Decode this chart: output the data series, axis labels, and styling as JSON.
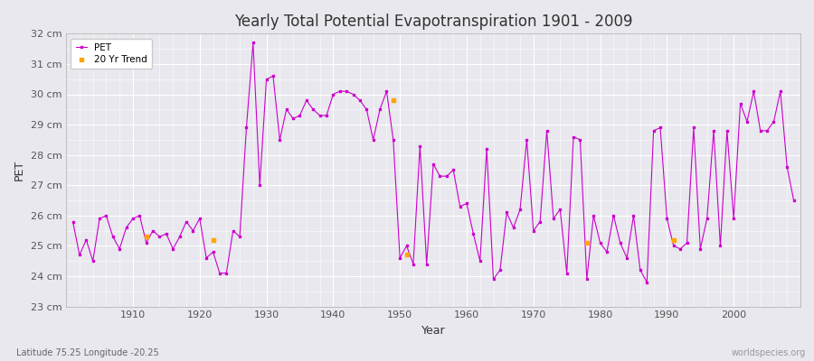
{
  "title": "Yearly Total Potential Evapotranspiration 1901 - 2009",
  "xlabel": "Year",
  "ylabel": "PET",
  "subtitle": "Latitude 75.25 Longitude -20.25",
  "watermark": "worldspecies.org",
  "ylim": [
    23,
    32
  ],
  "ytick_labels": [
    "23 cm",
    "24 cm",
    "25 cm",
    "26 cm",
    "27 cm",
    "28 cm",
    "29 cm",
    "30 cm",
    "31 cm",
    "32 cm"
  ],
  "ytick_values": [
    23,
    24,
    25,
    26,
    27,
    28,
    29,
    30,
    31,
    32
  ],
  "xlim": [
    1900,
    2010
  ],
  "pet_color": "#cc00cc",
  "trend_color": "#ffa500",
  "bg_color": "#e8e8ee",
  "grid_color": "#ffffff",
  "legend_pet": "PET",
  "legend_trend": "20 Yr Trend",
  "years": [
    1901,
    1902,
    1903,
    1904,
    1905,
    1906,
    1907,
    1908,
    1909,
    1910,
    1911,
    1912,
    1913,
    1914,
    1915,
    1916,
    1917,
    1918,
    1919,
    1920,
    1921,
    1922,
    1923,
    1924,
    1925,
    1926,
    1927,
    1928,
    1929,
    1930,
    1931,
    1932,
    1933,
    1934,
    1935,
    1936,
    1937,
    1938,
    1939,
    1940,
    1941,
    1942,
    1943,
    1944,
    1945,
    1946,
    1947,
    1948,
    1949,
    1950,
    1951,
    1952,
    1953,
    1954,
    1955,
    1956,
    1957,
    1958,
    1959,
    1960,
    1961,
    1962,
    1963,
    1964,
    1965,
    1966,
    1967,
    1968,
    1969,
    1970,
    1971,
    1972,
    1973,
    1974,
    1975,
    1976,
    1977,
    1978,
    1979,
    1980,
    1981,
    1982,
    1983,
    1984,
    1985,
    1986,
    1987,
    1988,
    1989,
    1990,
    1991,
    1992,
    1993,
    1994,
    1995,
    1996,
    1997,
    1998,
    1999,
    2000,
    2001,
    2002,
    2003,
    2004,
    2005,
    2006,
    2007,
    2008,
    2009
  ],
  "pet_values": [
    25.8,
    24.7,
    25.2,
    24.5,
    25.9,
    26.0,
    25.3,
    24.9,
    25.6,
    25.9,
    26.0,
    25.1,
    25.5,
    25.3,
    25.4,
    24.9,
    25.3,
    25.8,
    25.5,
    25.9,
    24.6,
    24.8,
    24.1,
    24.1,
    25.5,
    25.3,
    28.9,
    31.7,
    27.0,
    30.5,
    30.6,
    28.5,
    29.5,
    29.2,
    29.3,
    29.8,
    29.5,
    29.3,
    29.3,
    30.0,
    30.1,
    30.1,
    30.0,
    29.8,
    29.5,
    28.5,
    29.5,
    30.1,
    28.5,
    24.6,
    25.0,
    24.4,
    28.3,
    24.4,
    27.7,
    27.3,
    27.3,
    27.5,
    26.3,
    26.4,
    25.4,
    24.5,
    28.2,
    23.9,
    24.2,
    26.1,
    25.6,
    26.2,
    28.5,
    25.5,
    25.8,
    28.8,
    25.9,
    26.2,
    24.1,
    28.6,
    28.5,
    23.9,
    26.0,
    25.1,
    24.8,
    26.0,
    25.1,
    24.6,
    26.0,
    24.2,
    23.8,
    28.8,
    28.9,
    25.9,
    25.0,
    24.9,
    25.1,
    28.9,
    24.9,
    25.9,
    28.8,
    25.0,
    28.8,
    25.9,
    29.7,
    29.1,
    30.1,
    28.8,
    28.8,
    29.1,
    30.1,
    27.6,
    26.5
  ],
  "trend_years": [
    1912,
    1922,
    1949,
    1951,
    1978,
    1991
  ],
  "trend_values": [
    25.3,
    25.2,
    29.8,
    24.7,
    25.1,
    25.2
  ]
}
